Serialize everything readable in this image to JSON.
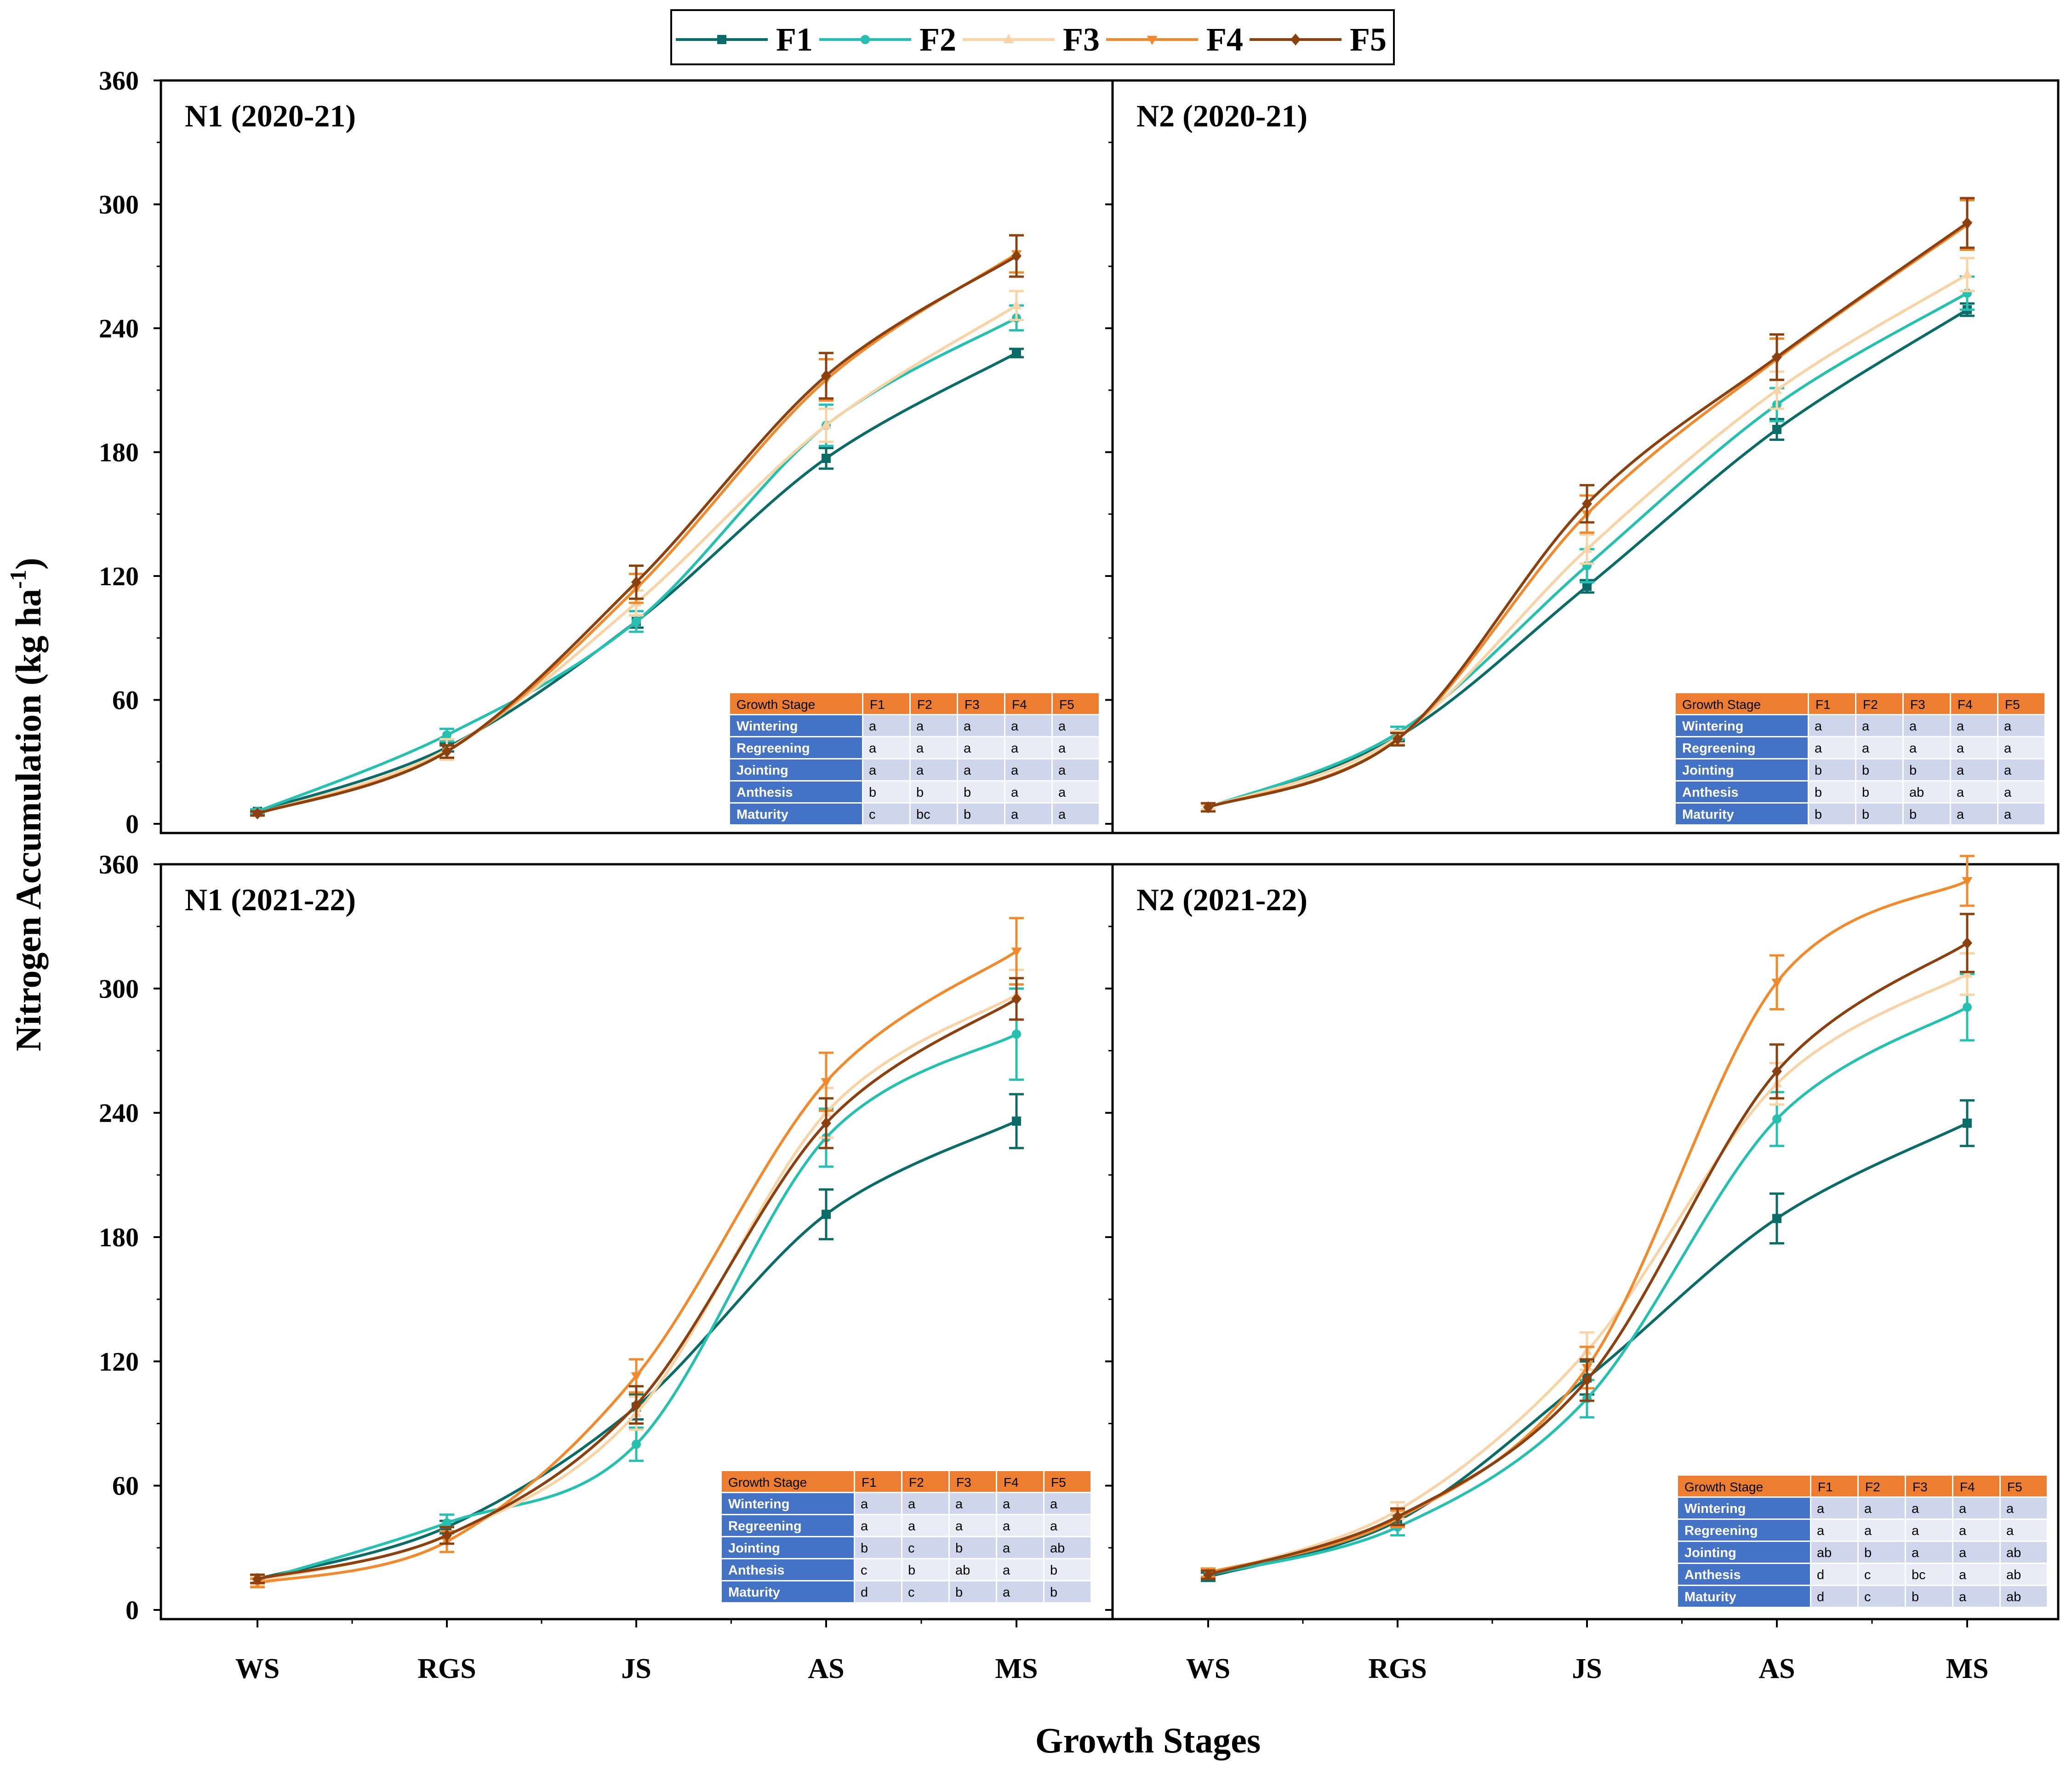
{
  "colors": {
    "F1": "#0b6b67",
    "F2": "#26bfb0",
    "F3": "#f7d3a6",
    "F4": "#f08a2e",
    "F5": "#8b4010",
    "table_header_bg": "#ed7d31",
    "table_label_bg": "#4472c4",
    "table_row_dark": "#cfd5ea",
    "table_row_light": "#e9ebf5"
  },
  "legend": {
    "entries": [
      {
        "name": "F1",
        "marker": "square"
      },
      {
        "name": "F2",
        "marker": "circle"
      },
      {
        "name": "F3",
        "marker": "triangle-up"
      },
      {
        "name": "F4",
        "marker": "triangle-down"
      },
      {
        "name": "F5",
        "marker": "diamond"
      }
    ]
  },
  "axes": {
    "ylabel": "Nitrogen Accumulation (kg ha",
    "ylabel_sup": "-1",
    "ylabel_end": ")",
    "xlabel": "Growth Stages"
  },
  "chart_data": [
    {
      "type": "line",
      "title": "N1 (2020-21)",
      "categories": [
        "WS",
        "RGS",
        "JS",
        "AS",
        "MS"
      ],
      "ylim": [
        0,
        360
      ],
      "yticks": [
        0,
        60,
        120,
        180,
        240,
        300,
        360
      ],
      "series": [
        {
          "name": "F1",
          "values": [
            6,
            37,
            98,
            177,
            228
          ],
          "errors": [
            1,
            2,
            3,
            5,
            2
          ]
        },
        {
          "name": "F2",
          "values": [
            6,
            43,
            98,
            193,
            245
          ],
          "errors": [
            1,
            3,
            5,
            10,
            6
          ]
        },
        {
          "name": "F3",
          "values": [
            5,
            36,
            107,
            193,
            251
          ],
          "errors": [
            1,
            5,
            6,
            8,
            7
          ]
        },
        {
          "name": "F4",
          "values": [
            5,
            35,
            114,
            215,
            276
          ],
          "errors": [
            1,
            3,
            7,
            10,
            9
          ]
        },
        {
          "name": "F5",
          "values": [
            5,
            35,
            117,
            217,
            275
          ],
          "errors": [
            1,
            3,
            8,
            11,
            10
          ]
        }
      ],
      "significance_table": {
        "header": [
          "Growth Stage",
          "F1",
          "F2",
          "F3",
          "F4",
          "F5"
        ],
        "rows": [
          [
            "Wintering",
            "a",
            "a",
            "a",
            "a",
            "a"
          ],
          [
            "Regreening",
            "a",
            "a",
            "a",
            "a",
            "a"
          ],
          [
            "Jointing",
            "a",
            "a",
            "a",
            "a",
            "a"
          ],
          [
            "Anthesis",
            "b",
            "b",
            "b",
            "a",
            "a"
          ],
          [
            "Maturity",
            "c",
            "bc",
            "b",
            "a",
            "a"
          ]
        ]
      }
    },
    {
      "type": "line",
      "title": "N2 (2020-21)",
      "categories": [
        "WS",
        "RGS",
        "JS",
        "AS",
        "MS"
      ],
      "ylim": [
        0,
        360
      ],
      "yticks": [
        0,
        60,
        120,
        180,
        240,
        300,
        360
      ],
      "series": [
        {
          "name": "F1",
          "values": [
            8,
            42,
            115,
            191,
            249
          ],
          "errors": [
            1,
            2,
            3,
            5,
            3
          ]
        },
        {
          "name": "F2",
          "values": [
            8,
            44,
            125,
            203,
            257
          ],
          "errors": [
            1,
            3,
            8,
            8,
            8
          ]
        },
        {
          "name": "F3",
          "values": [
            8,
            42,
            133,
            210,
            266
          ],
          "errors": [
            1,
            3,
            7,
            9,
            8
          ]
        },
        {
          "name": "F4",
          "values": [
            8,
            41,
            150,
            225,
            290
          ],
          "errors": [
            2,
            3,
            9,
            10,
            12
          ]
        },
        {
          "name": "F5",
          "values": [
            8,
            41,
            155,
            226,
            291
          ],
          "errors": [
            2,
            3,
            9,
            11,
            12
          ]
        }
      ],
      "significance_table": {
        "header": [
          "Growth Stage",
          "F1",
          "F2",
          "F3",
          "F4",
          "F5"
        ],
        "rows": [
          [
            "Wintering",
            "a",
            "a",
            "a",
            "a",
            "a"
          ],
          [
            "Regreening",
            "a",
            "a",
            "a",
            "a",
            "a"
          ],
          [
            "Jointing",
            "b",
            "b",
            "b",
            "a",
            "a"
          ],
          [
            "Anthesis",
            "b",
            "b",
            "ab",
            "a",
            "a"
          ],
          [
            "Maturity",
            "b",
            "b",
            "b",
            "a",
            "a"
          ]
        ]
      }
    },
    {
      "type": "line",
      "title": "N1 (2021-22)",
      "categories": [
        "WS",
        "RGS",
        "JS",
        "AS",
        "MS"
      ],
      "ylim": [
        0,
        360
      ],
      "yticks": [
        0,
        60,
        120,
        180,
        240,
        300,
        360
      ],
      "series": [
        {
          "name": "F1",
          "values": [
            15,
            40,
            98,
            191,
            236
          ],
          "errors": [
            2,
            3,
            6,
            12,
            13
          ]
        },
        {
          "name": "F2",
          "values": [
            14,
            42,
            80,
            228,
            278
          ],
          "errors": [
            2,
            4,
            8,
            14,
            22
          ]
        },
        {
          "name": "F3",
          "values": [
            14,
            36,
            95,
            240,
            297
          ],
          "errors": [
            2,
            4,
            8,
            12,
            12
          ]
        },
        {
          "name": "F4",
          "values": [
            13,
            33,
            113,
            255,
            318
          ],
          "errors": [
            2,
            5,
            8,
            14,
            16
          ]
        },
        {
          "name": "F5",
          "values": [
            15,
            36,
            99,
            235,
            295
          ],
          "errors": [
            2,
            4,
            9,
            12,
            10
          ]
        }
      ],
      "significance_table": {
        "header": [
          "Growth Stage",
          "F1",
          "F2",
          "F3",
          "F4",
          "F5"
        ],
        "rows": [
          [
            "Wintering",
            "a",
            "a",
            "a",
            "a",
            "a"
          ],
          [
            "Regreening",
            "a",
            "a",
            "a",
            "a",
            "a"
          ],
          [
            "Jointing",
            "b",
            "c",
            "b",
            "a",
            "ab"
          ],
          [
            "Anthesis",
            "c",
            "b",
            "ab",
            "a",
            "b"
          ],
          [
            "Maturity",
            "d",
            "c",
            "b",
            "a",
            "b"
          ]
        ]
      }
    },
    {
      "type": "line",
      "title": "N2 (2021-22)",
      "categories": [
        "WS",
        "RGS",
        "JS",
        "AS",
        "MS"
      ],
      "ylim": [
        0,
        360
      ],
      "yticks": [
        0,
        60,
        120,
        180,
        240,
        300,
        360
      ],
      "series": [
        {
          "name": "F1",
          "values": [
            16,
            43,
            112,
            189,
            235
          ],
          "errors": [
            2,
            3,
            8,
            12,
            11
          ]
        },
        {
          "name": "F2",
          "values": [
            17,
            40,
            102,
            237,
            291
          ],
          "errors": [
            2,
            4,
            9,
            13,
            16
          ]
        },
        {
          "name": "F3",
          "values": [
            17,
            48,
            125,
            254,
            307
          ],
          "errors": [
            2,
            4,
            9,
            10,
            10
          ]
        },
        {
          "name": "F4",
          "values": [
            18,
            44,
            117,
            303,
            352
          ],
          "errors": [
            2,
            4,
            10,
            13,
            12
          ]
        },
        {
          "name": "F5",
          "values": [
            17,
            45,
            111,
            260,
            322
          ],
          "errors": [
            2,
            4,
            10,
            13,
            14
          ]
        }
      ],
      "significance_table": {
        "header": [
          "Growth Stage",
          "F1",
          "F2",
          "F3",
          "F4",
          "F5"
        ],
        "rows": [
          [
            "Wintering",
            "a",
            "a",
            "a",
            "a",
            "a"
          ],
          [
            "Regreening",
            "a",
            "a",
            "a",
            "a",
            "a"
          ],
          [
            "Jointing",
            "ab",
            "b",
            "a",
            "a",
            "ab"
          ],
          [
            "Anthesis",
            "d",
            "c",
            "bc",
            "a",
            "ab"
          ],
          [
            "Maturity",
            "d",
            "c",
            "b",
            "a",
            "ab"
          ]
        ]
      }
    }
  ]
}
